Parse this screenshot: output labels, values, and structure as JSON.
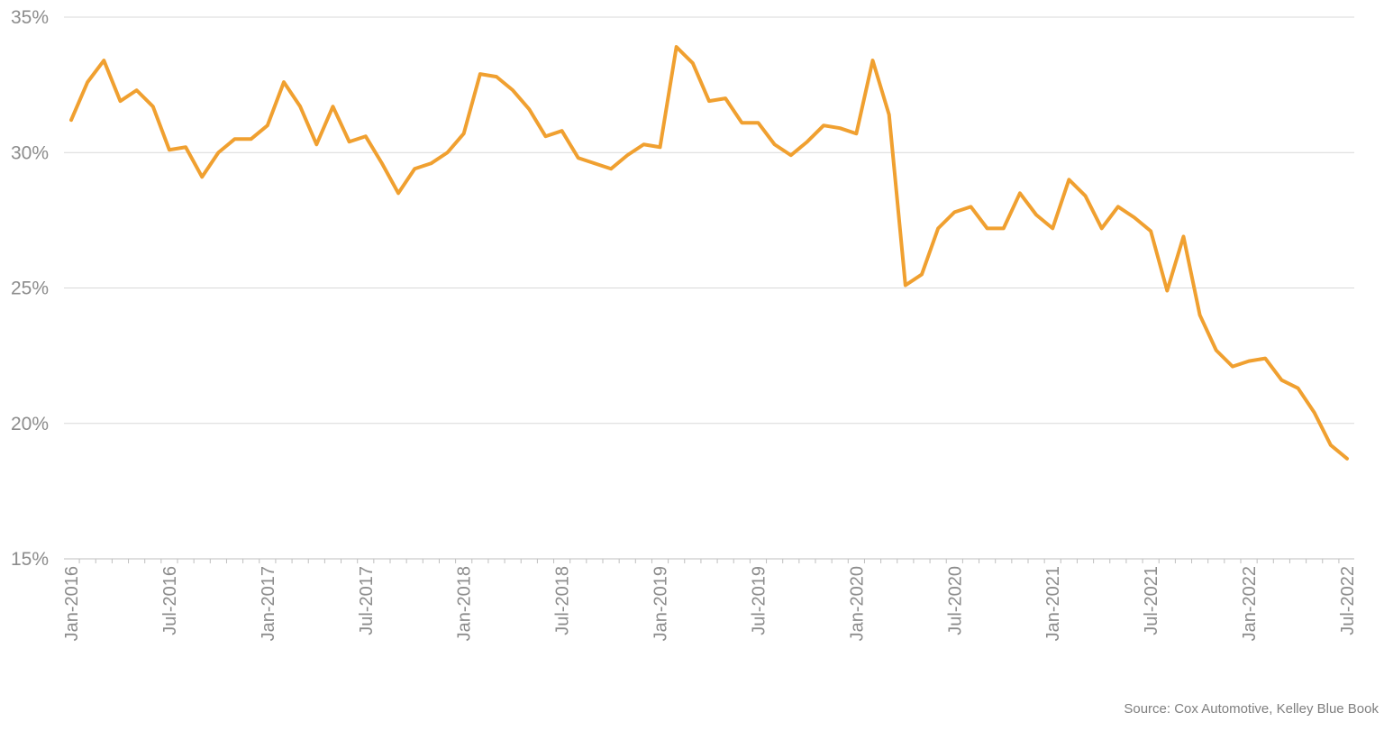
{
  "chart_data": {
    "type": "line",
    "title": "",
    "xlabel": "",
    "ylabel": "",
    "source": "Source: Cox Automotive, Kelley Blue Book",
    "ylim": [
      15,
      35
    ],
    "yticks": [
      15,
      20,
      25,
      30,
      35
    ],
    "ytick_labels": [
      "15%",
      "20%",
      "25%",
      "30%",
      "35%"
    ],
    "grid": true,
    "line_color": "#f0a030",
    "x": [
      "Jan-2016",
      "Feb-2016",
      "Mar-2016",
      "Apr-2016",
      "May-2016",
      "Jun-2016",
      "Jul-2016",
      "Aug-2016",
      "Sep-2016",
      "Oct-2016",
      "Nov-2016",
      "Dec-2016",
      "Jan-2017",
      "Feb-2017",
      "Mar-2017",
      "Apr-2017",
      "May-2017",
      "Jun-2017",
      "Jul-2017",
      "Aug-2017",
      "Sep-2017",
      "Oct-2017",
      "Nov-2017",
      "Dec-2017",
      "Jan-2018",
      "Feb-2018",
      "Mar-2018",
      "Apr-2018",
      "May-2018",
      "Jun-2018",
      "Jul-2018",
      "Aug-2018",
      "Sep-2018",
      "Oct-2018",
      "Nov-2018",
      "Dec-2018",
      "Jan-2019",
      "Feb-2019",
      "Mar-2019",
      "Apr-2019",
      "May-2019",
      "Jun-2019",
      "Jul-2019",
      "Aug-2019",
      "Sep-2019",
      "Oct-2019",
      "Nov-2019",
      "Dec-2019",
      "Jan-2020",
      "Feb-2020",
      "Mar-2020",
      "Apr-2020",
      "May-2020",
      "Jun-2020",
      "Jul-2020",
      "Aug-2020",
      "Sep-2020",
      "Oct-2020",
      "Nov-2020",
      "Dec-2020",
      "Jan-2021",
      "Feb-2021",
      "Mar-2021",
      "Apr-2021",
      "May-2021",
      "Jun-2021",
      "Jul-2021",
      "Aug-2021",
      "Sep-2021",
      "Oct-2021",
      "Nov-2021",
      "Dec-2021",
      "Jan-2022",
      "Feb-2022",
      "Mar-2022",
      "Apr-2022",
      "May-2022",
      "Jun-2022",
      "Jul-2022"
    ],
    "x_tick_labels": [
      "Jan-2016",
      "Jul-2016",
      "Jan-2017",
      "Jul-2017",
      "Jan-2018",
      "Jul-2018",
      "Jan-2019",
      "Jul-2019",
      "Jan-2020",
      "Jul-2020",
      "Jan-2021",
      "Jul-2021",
      "Jan-2022",
      "Jul-2022"
    ],
    "series": [
      {
        "values": [
          31.2,
          32.6,
          33.4,
          31.9,
          32.3,
          31.7,
          30.1,
          30.2,
          29.1,
          30.0,
          30.5,
          30.5,
          31.0,
          32.6,
          31.7,
          30.3,
          31.7,
          30.4,
          30.6,
          29.6,
          28.5,
          29.4,
          29.6,
          30.0,
          30.7,
          32.9,
          32.8,
          32.3,
          31.6,
          30.6,
          30.8,
          29.8,
          29.6,
          29.4,
          29.9,
          30.3,
          30.2,
          33.9,
          33.3,
          31.9,
          32.0,
          31.1,
          31.1,
          30.3,
          29.9,
          30.4,
          31.0,
          30.9,
          30.7,
          33.4,
          31.4,
          25.1,
          25.5,
          27.2,
          27.8,
          28.0,
          27.2,
          27.2,
          28.5,
          27.7,
          27.2,
          29.0,
          28.4,
          27.2,
          28.0,
          27.6,
          27.1,
          24.9,
          26.9,
          24.0,
          22.7,
          22.1,
          22.3,
          22.4,
          21.6,
          21.3,
          20.4,
          19.2,
          18.7
        ]
      }
    ]
  }
}
